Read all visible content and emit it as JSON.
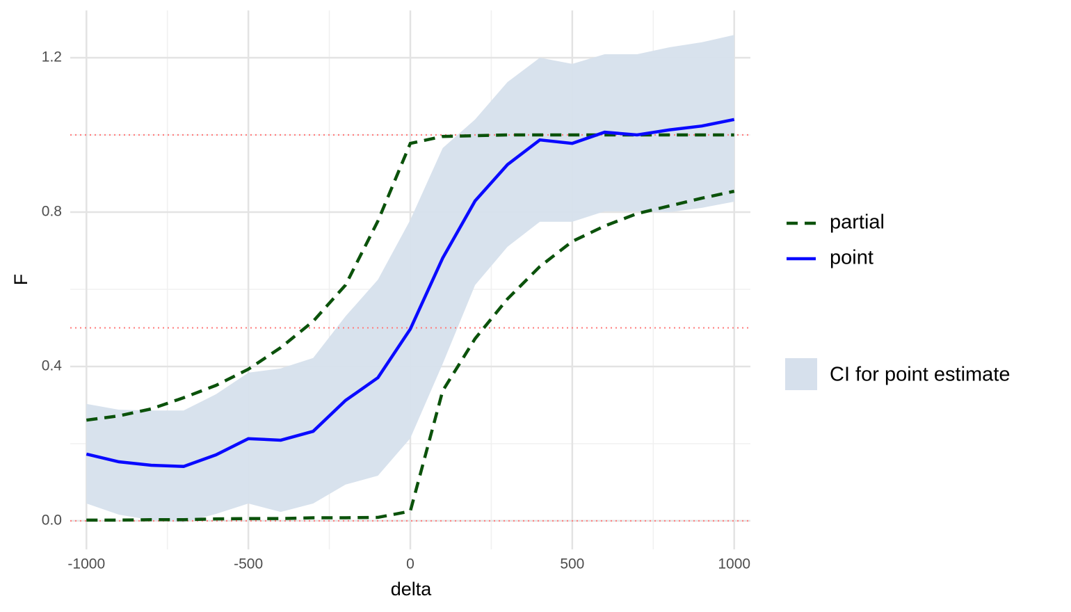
{
  "chart_data": {
    "type": "line",
    "x_label": "delta",
    "y_label": "F",
    "x": [
      -1000,
      -900,
      -800,
      -700,
      -600,
      -500,
      -400,
      -300,
      -200,
      -100,
      0,
      100,
      200,
      300,
      400,
      500,
      600,
      700,
      800,
      900,
      1000
    ],
    "band": {
      "name": "CI for point estimate",
      "color": "#d6e0ec",
      "upper": [
        0.303,
        0.288,
        0.286,
        0.286,
        0.328,
        0.384,
        0.395,
        0.422,
        0.53,
        0.625,
        0.78,
        0.966,
        1.04,
        1.137,
        1.2,
        1.184,
        1.209,
        1.209,
        1.227,
        1.24,
        1.259
      ],
      "lower": [
        0.045,
        0.016,
        0.002,
        -0.004,
        0.018,
        0.045,
        0.023,
        0.045,
        0.094,
        0.117,
        0.214,
        0.407,
        0.611,
        0.71,
        0.775,
        0.775,
        0.802,
        0.802,
        0.8,
        0.811,
        0.827
      ]
    },
    "series": [
      {
        "name": "partial",
        "color": "#0b520b",
        "dashed": true,
        "upper": [
          0.261,
          0.272,
          0.29,
          0.319,
          0.351,
          0.393,
          0.449,
          0.517,
          0.611,
          0.777,
          0.978,
          0.996,
          0.998,
          1.0,
          1.0,
          1.0,
          1.0,
          1.0,
          1.0,
          1.0,
          1.0
        ],
        "lower": [
          0.002,
          0.002,
          0.003,
          0.003,
          0.005,
          0.006,
          0.006,
          0.008,
          0.008,
          0.009,
          0.025,
          0.337,
          0.472,
          0.575,
          0.659,
          0.724,
          0.764,
          0.796,
          0.816,
          0.836,
          0.854
        ]
      },
      {
        "name": "point",
        "color": "#0a0aff",
        "dashed": false,
        "values": [
          0.173,
          0.153,
          0.144,
          0.141,
          0.171,
          0.213,
          0.209,
          0.232,
          0.312,
          0.371,
          0.497,
          0.681,
          0.829,
          0.923,
          0.987,
          0.978,
          1.007,
          1.0,
          1.013,
          1.023,
          1.04
        ]
      }
    ],
    "hlines": [
      0,
      0.5,
      1
    ],
    "hline_color": "#ff8080",
    "xlim": [
      -1050,
      1050
    ],
    "ylim": [
      -0.074,
      1.3225
    ],
    "xticks": [
      -1000,
      -500,
      0,
      500,
      1000
    ],
    "yticks": [
      {
        "value": 0,
        "label": "0.0"
      },
      0.4,
      0.8,
      1.2
    ],
    "grid": true
  }
}
